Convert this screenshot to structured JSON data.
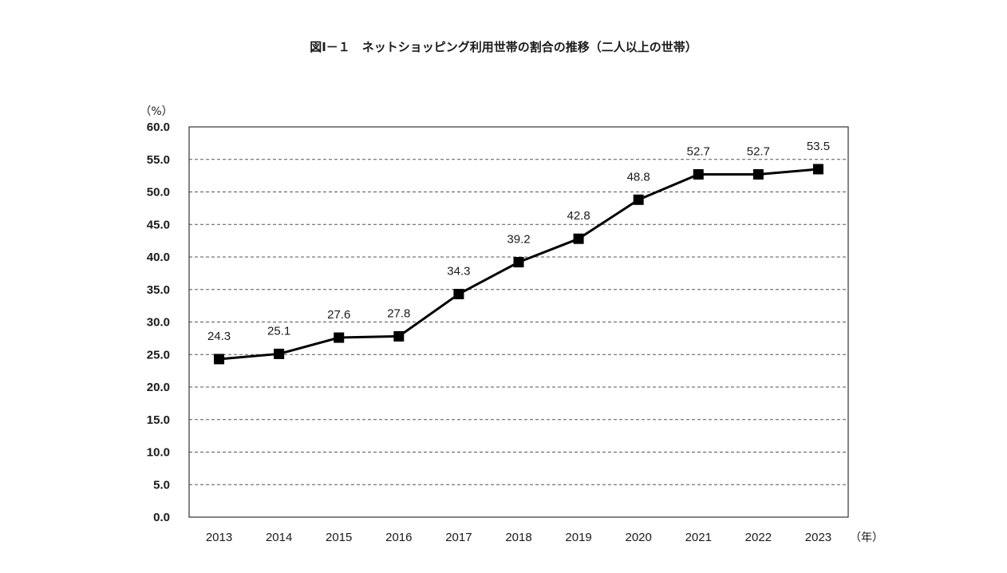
{
  "chart_data": {
    "type": "line",
    "title": "図Ⅰ－１　ネットショッピング利用世帯の割合の推移（二人以上の世帯）",
    "ylabel": "（%）",
    "xlabel": "（年）",
    "categories": [
      "2013",
      "2014",
      "2015",
      "2016",
      "2017",
      "2018",
      "2019",
      "2020",
      "2021",
      "2022",
      "2023"
    ],
    "series": [
      {
        "name": "ネットショッピング利用世帯の割合",
        "values": [
          24.3,
          25.1,
          27.6,
          27.8,
          34.3,
          39.2,
          42.8,
          48.8,
          52.7,
          52.7,
          53.5
        ],
        "labels": [
          "24.3",
          "25.1",
          "27.6",
          "27.8",
          "34.3",
          "39.2",
          "42.8",
          "48.8",
          "52.7",
          "52.7",
          "53.5"
        ]
      }
    ],
    "ylim": [
      0,
      60
    ],
    "yticks": [
      "0.0",
      "5.0",
      "10.0",
      "15.0",
      "20.0",
      "25.0",
      "30.0",
      "35.0",
      "40.0",
      "45.0",
      "50.0",
      "55.0",
      "60.0"
    ],
    "grid": true,
    "marker": "square",
    "line_color": "#000000",
    "grid_color": "#555555"
  }
}
